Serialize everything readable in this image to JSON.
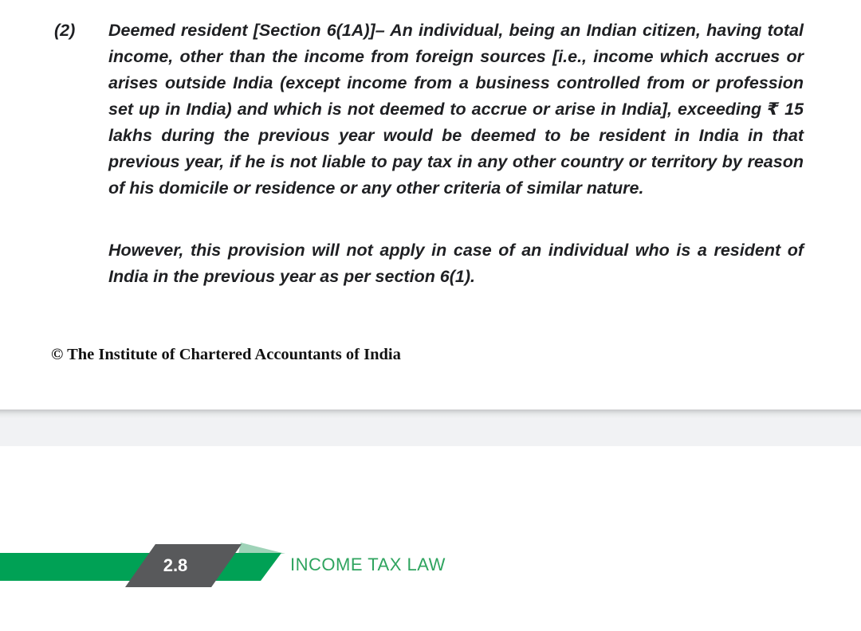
{
  "document": {
    "item_number": "(2)",
    "para_main": "Deemed resident [Section 6(1A)]– An individual, being an Indian citizen, having total income, other than the income from foreign sources [i.e., income which accrues or arises outside India (except income from a business controlled from or profession set up in India) and which is not deemed to accrue or arise in India], exceeding ₹ 15 lakhs during the previous year would be deemed to be resident in India in that previous year, if he is not liable to pay tax in any other country or territory by reason of his domicile or residence or any other criteria of similar nature.",
    "para_secondary": "However, this provision will not apply in case of an individual who is a resident of India in the previous year as per section 6(1).",
    "copyright_notice": "© The Institute of Chartered Accountants of India"
  },
  "footer": {
    "page_number": "2.8",
    "book_title": "INCOME TAX LAW",
    "colors": {
      "ribbon_green": "#00a155",
      "ribbon_highlight": "#9fd3b8",
      "badge_gray": "#58595b",
      "title_green": "#2fa45f"
    }
  }
}
